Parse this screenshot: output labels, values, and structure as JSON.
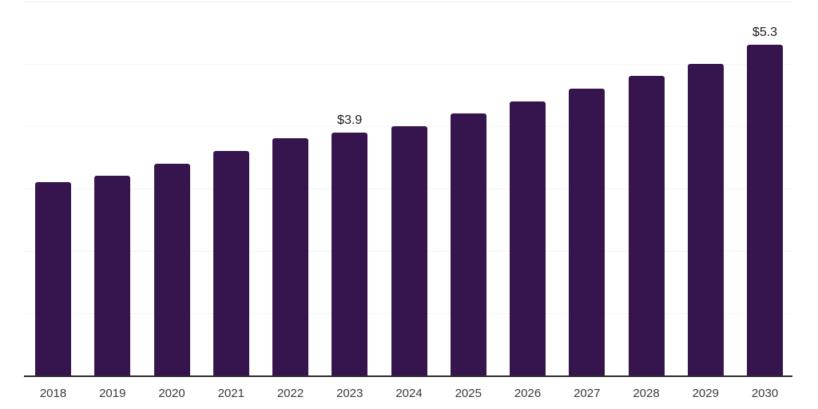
{
  "chart_data": {
    "type": "bar",
    "title": "",
    "xlabel": "",
    "ylabel": "",
    "categories": [
      "2018",
      "2019",
      "2020",
      "2021",
      "2022",
      "2023",
      "2024",
      "2025",
      "2026",
      "2027",
      "2028",
      "2029",
      "2030"
    ],
    "values": [
      3.1,
      3.2,
      3.4,
      3.6,
      3.8,
      3.9,
      4.0,
      4.2,
      4.4,
      4.6,
      4.8,
      5.0,
      5.3
    ],
    "data_labels": [
      {
        "category": "2023",
        "index": 5,
        "text": "$3.9"
      },
      {
        "category": "2030",
        "index": 12,
        "text": "$5.3"
      }
    ],
    "ylim": [
      0,
      6
    ],
    "grid_step": 1,
    "grid": "horizontal-only",
    "legend": "none",
    "y_axis_labels": "none",
    "colors": {
      "bar": "#36154e",
      "axis_line": "#2c2c2c",
      "gridline": "#f4f4f7",
      "top_gridline": "#edeff2",
      "tick_label": "#3a3a3a",
      "data_label": "#1c1c1c",
      "background": "#ffffff"
    }
  }
}
